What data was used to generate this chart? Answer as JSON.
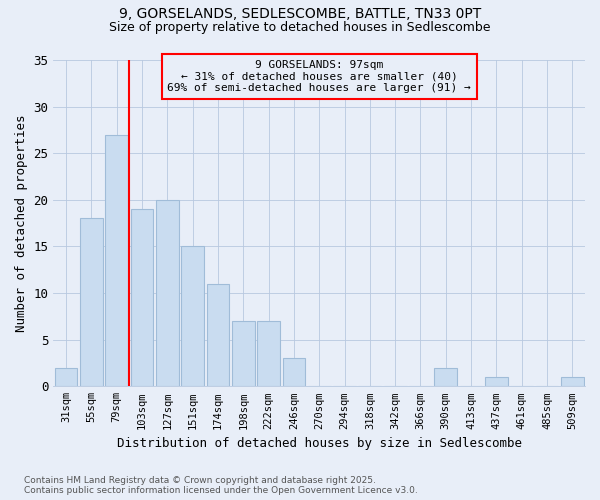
{
  "title1": "9, GORSELANDS, SEDLESCOMBE, BATTLE, TN33 0PT",
  "title2": "Size of property relative to detached houses in Sedlescombe",
  "xlabel": "Distribution of detached houses by size in Sedlescombe",
  "ylabel": "Number of detached properties",
  "categories": [
    "31sqm",
    "55sqm",
    "79sqm",
    "103sqm",
    "127sqm",
    "151sqm",
    "174sqm",
    "198sqm",
    "222sqm",
    "246sqm",
    "270sqm",
    "294sqm",
    "318sqm",
    "342sqm",
    "366sqm",
    "390sqm",
    "413sqm",
    "437sqm",
    "461sqm",
    "485sqm",
    "509sqm"
  ],
  "values": [
    2,
    18,
    27,
    19,
    20,
    15,
    11,
    7,
    7,
    3,
    0,
    0,
    0,
    0,
    0,
    2,
    0,
    1,
    0,
    0,
    1
  ],
  "bar_color": "#c9dcf0",
  "bar_edgecolor": "#a0bcd8",
  "red_line_x": 2.5,
  "annotation_title": "9 GORSELANDS: 97sqm",
  "annotation_line1": "← 31% of detached houses are smaller (40)",
  "annotation_line2": "69% of semi-detached houses are larger (91) →",
  "ylim": [
    0,
    35
  ],
  "yticks": [
    0,
    5,
    10,
    15,
    20,
    25,
    30,
    35
  ],
  "footnote1": "Contains HM Land Registry data © Crown copyright and database right 2025.",
  "footnote2": "Contains public sector information licensed under the Open Government Licence v3.0.",
  "bg_color": "#e8eef8"
}
